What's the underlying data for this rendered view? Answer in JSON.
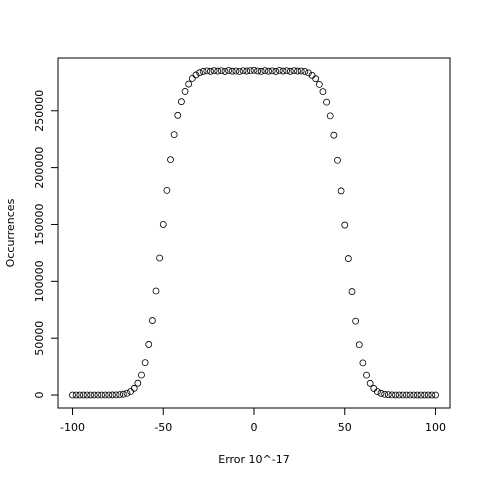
{
  "chart_data": {
    "type": "scatter",
    "x_label": "Error 10^-17",
    "y_label": "Occurrences",
    "x": [
      -100,
      -98,
      -96,
      -94,
      -92,
      -90,
      -88,
      -86,
      -84,
      -82,
      -80,
      -78,
      -76,
      -74,
      -72,
      -70,
      -68,
      -66,
      -64,
      -62,
      -60,
      -58,
      -56,
      -54,
      -52,
      -50,
      -48,
      -46,
      -44,
      -42,
      -40,
      -38,
      -36,
      -34,
      -32,
      -30,
      -28,
      -26,
      -24,
      -22,
      -20,
      -18,
      -16,
      -14,
      -12,
      -10,
      -8,
      -6,
      -4,
      -2,
      0,
      2,
      4,
      6,
      8,
      10,
      12,
      14,
      16,
      18,
      20,
      22,
      24,
      26,
      28,
      30,
      32,
      34,
      36,
      38,
      40,
      42,
      44,
      46,
      48,
      50,
      52,
      54,
      56,
      58,
      60,
      62,
      64,
      66,
      68,
      70,
      72,
      74,
      76,
      78,
      80,
      82,
      84,
      86,
      88,
      90,
      92,
      94,
      96,
      98,
      100
    ],
    "series": [
      {
        "name": "Occurrences",
        "color": "#000000",
        "values": [
          0,
          0,
          0,
          0,
          1,
          2,
          4,
          6,
          12,
          20,
          35,
          70,
          160,
          350,
          750,
          1550,
          3100,
          5900,
          10400,
          17600,
          28500,
          44500,
          65500,
          91500,
          120500,
          150000,
          180000,
          207000,
          229000,
          246000,
          258000,
          267000,
          273500,
          278500,
          281500,
          283500,
          284600,
          285100,
          284700,
          285300,
          284900,
          285200,
          284600,
          285400,
          284800,
          285000,
          284500,
          285200,
          284900,
          285300,
          285600,
          285000,
          284700,
          285300,
          284800,
          285100,
          284600,
          285400,
          284900,
          285200,
          284700,
          285300,
          284900,
          285000,
          284500,
          283300,
          281200,
          278200,
          273200,
          266800,
          257600,
          245500,
          228500,
          206500,
          179500,
          149500,
          120000,
          91000,
          65000,
          44200,
          28300,
          17500,
          10300,
          5800,
          3000,
          1500,
          720,
          330,
          150,
          65,
          30,
          18,
          10,
          6,
          3,
          2,
          1,
          0,
          0,
          0,
          0
        ]
      }
    ],
    "xlim": [
      -108,
      108
    ],
    "ylim": [
      -11400,
      296400
    ],
    "xticks": [
      -100,
      -50,
      0,
      50,
      100
    ],
    "yticks": [
      0,
      50000,
      100000,
      150000,
      200000,
      250000
    ]
  }
}
